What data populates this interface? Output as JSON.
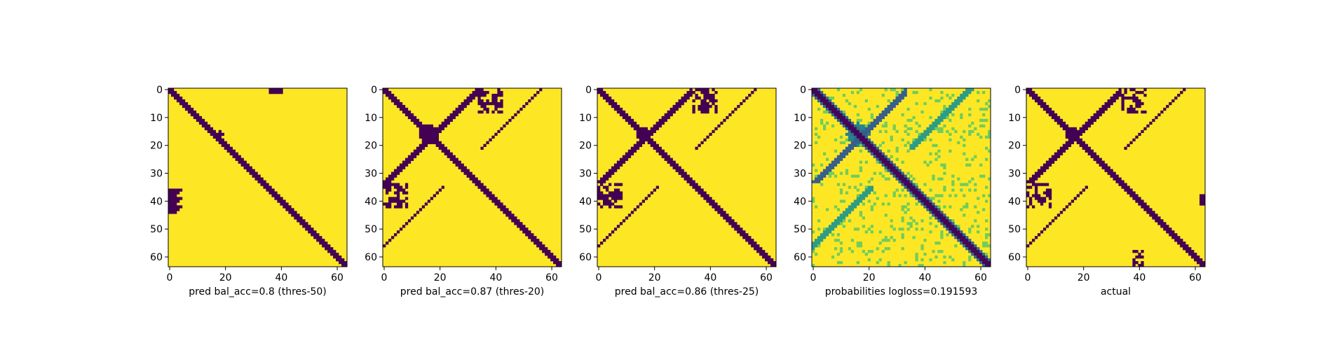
{
  "colors": {
    "low": "#440154",
    "mid": "#21918c",
    "high": "#fde725",
    "colormap": "viridis"
  },
  "chart_data": [
    {
      "type": "heatmap",
      "xlabel": "pred bal_acc=0.8 (thres-50)",
      "matrix_size": 64,
      "xticks": [
        0,
        20,
        40,
        60
      ],
      "yticks": [
        0,
        10,
        20,
        30,
        40,
        50,
        60
      ],
      "xlim": [
        0,
        63
      ],
      "ylim": [
        63,
        0
      ],
      "values": "binary (0/1) contact map; dark (0) band along the main diagonal; small dark clusters near (38,0)-(40,8) and (0-6,36-44)"
    },
    {
      "type": "heatmap",
      "xlabel": "pred bal_acc=0.87 (thres-20)",
      "matrix_size": 64,
      "xticks": [
        0,
        20,
        40,
        60
      ],
      "yticks": [
        0,
        10,
        20,
        30,
        40,
        50,
        60
      ],
      "xlim": [
        0,
        63
      ],
      "ylim": [
        63,
        0
      ],
      "values": "binary (0/1) contact map; dark main diagonal band plus anti-diagonal arm and blob around (17,17)"
    },
    {
      "type": "heatmap",
      "xlabel": "pred bal_acc=0.86 (thres-25)",
      "matrix_size": 64,
      "xticks": [
        0,
        20,
        40,
        60
      ],
      "yticks": [
        0,
        10,
        20,
        30,
        40,
        50,
        60
      ],
      "xlim": [
        0,
        63
      ],
      "ylim": [
        63,
        0
      ],
      "values": "binary (0/1) contact map; dark main diagonal band plus anti-diagonal arm and blob around (16,16)"
    },
    {
      "type": "heatmap",
      "xlabel": "probabilities logloss=0.191593",
      "matrix_size": 64,
      "xticks": [
        0,
        20,
        40,
        60
      ],
      "yticks": [
        0,
        10,
        20,
        30,
        40,
        50,
        60
      ],
      "xlim": [
        0,
        63
      ],
      "ylim": [
        63,
        0
      ],
      "values": "continuous probability map (viridis); low values on main diagonal, intermediate (teal/green) on anti-diagonal and cross features"
    },
    {
      "type": "heatmap",
      "xlabel": "actual",
      "matrix_size": 64,
      "xticks": [
        0,
        20,
        40,
        60
      ],
      "yticks": [
        0,
        10,
        20,
        30,
        40,
        50,
        60
      ],
      "xlim": [
        0,
        63
      ],
      "ylim": [
        63,
        0
      ],
      "values": "binary (0/1) ground-truth contact map; dark main diagonal band plus anti-diagonal arm and blob around (16,16)"
    }
  ]
}
